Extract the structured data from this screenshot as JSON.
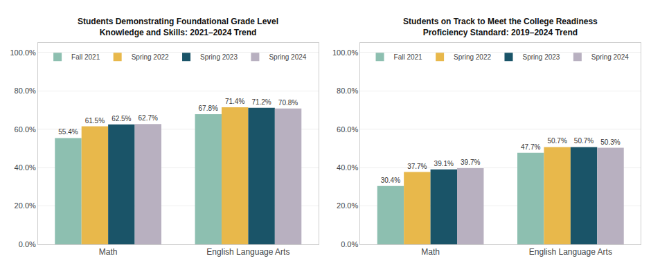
{
  "chart_data": [
    {
      "type": "bar",
      "title": "Students Demonstrating Foundational Grade Level\nKnowledge and Skills: 2021–2024 Trend",
      "categories": [
        "Math",
        "English Language Arts"
      ],
      "series": [
        {
          "name": "Fall 2021",
          "color": "#8dbfb0",
          "values": [
            55.4,
            67.8
          ],
          "value_labels": [
            "55.4%",
            "67.8%"
          ]
        },
        {
          "name": "Spring 2022",
          "color": "#e8b84b",
          "values": [
            61.5,
            71.4
          ],
          "value_labels": [
            "61.5%",
            "71.4%"
          ]
        },
        {
          "name": "Spring 2023",
          "color": "#1a5468",
          "values": [
            62.5,
            71.2
          ],
          "value_labels": [
            "62.5%",
            "71.2%"
          ]
        },
        {
          "name": "Spring 2024",
          "color": "#b8b0c0",
          "values": [
            62.7,
            70.8
          ],
          "value_labels": [
            "62.7%",
            "70.8%"
          ]
        }
      ],
      "ylim": [
        0,
        105
      ],
      "yticks": [
        {
          "value": 0,
          "label": "0.0%"
        },
        {
          "value": 20,
          "label": "20.0%"
        },
        {
          "value": 40,
          "label": "40.0%"
        },
        {
          "value": 60,
          "label": "60.0%"
        },
        {
          "value": 80,
          "label": "80.0%"
        },
        {
          "value": 100,
          "label": "100.0%"
        }
      ],
      "grid": true,
      "legend": "upper left",
      "data_labels": true
    },
    {
      "type": "bar",
      "title": "Students on Track to Meet the College Readiness\nProficiency Standard: 2019–2024 Trend",
      "categories": [
        "Math",
        "English Language Arts"
      ],
      "series": [
        {
          "name": "Fall 2021",
          "color": "#8dbfb0",
          "values": [
            30.4,
            47.7
          ],
          "value_labels": [
            "30.4%",
            "47.7%"
          ]
        },
        {
          "name": "Spring 2022",
          "color": "#e8b84b",
          "values": [
            37.7,
            50.7
          ],
          "value_labels": [
            "37.7%",
            "50.7%"
          ]
        },
        {
          "name": "Spring 2023",
          "color": "#1a5468",
          "values": [
            39.1,
            50.7
          ],
          "value_labels": [
            "39.1%",
            "50.7%"
          ]
        },
        {
          "name": "Spring 2024",
          "color": "#b8b0c0",
          "values": [
            39.7,
            50.3
          ],
          "value_labels": [
            "39.7%",
            "50.3%"
          ]
        }
      ],
      "ylim": [
        0,
        105
      ],
      "yticks": [
        {
          "value": 0,
          "label": "0.0%"
        },
        {
          "value": 20,
          "label": "20.0%"
        },
        {
          "value": 40,
          "label": "40.0%"
        },
        {
          "value": 60,
          "label": "60.0%"
        },
        {
          "value": 80,
          "label": "80.0%"
        },
        {
          "value": 100,
          "label": "100.0%"
        }
      ],
      "grid": true,
      "legend": "upper left",
      "data_labels": true
    }
  ]
}
